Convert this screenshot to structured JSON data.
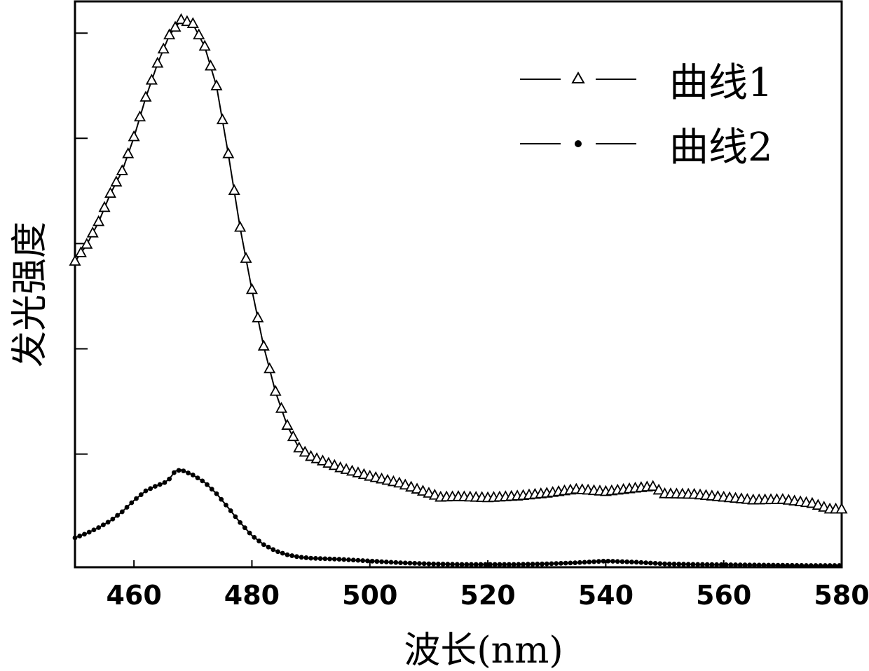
{
  "chart_data": {
    "type": "line",
    "xlabel": "波长(nm)",
    "ylabel": "发光强度",
    "xlim": [
      450,
      580
    ],
    "ylim": [
      0,
      100
    ],
    "x_ticks": [
      "460",
      "480",
      "500",
      "520",
      "540",
      "560",
      "580"
    ],
    "y_ticks_labeled": false,
    "legend_position": "top-right",
    "series": [
      {
        "name": "曲线1",
        "marker": "triangle-open",
        "color": "#000000",
        "x": [
          450,
          452,
          454,
          456,
          458,
          460,
          462,
          464,
          466,
          468,
          470,
          472,
          474,
          476,
          478,
          480,
          482,
          484,
          486,
          488,
          490,
          495,
          500,
          505,
          510,
          512,
          515,
          520,
          525,
          530,
          535,
          540,
          545,
          548,
          550,
          555,
          560,
          565,
          570,
          575,
          578,
          580
        ],
        "y": [
          54,
          57,
          61,
          66,
          70,
          76,
          83,
          89,
          94,
          96.7,
          96,
          92,
          85,
          73,
          60,
          49,
          39,
          31,
          25,
          21,
          19.5,
          17.5,
          16,
          14.8,
          13,
          12.3,
          12.4,
          12.2,
          12.5,
          13,
          13.7,
          13.3,
          13.9,
          14.2,
          12.9,
          12.8,
          12.3,
          11.8,
          11.9,
          11.2,
          10.2,
          10.2
        ]
      },
      {
        "name": "曲线2",
        "marker": "dot",
        "color": "#000000",
        "x": [
          450,
          452,
          454,
          456,
          458,
          460,
          462,
          464,
          465,
          466,
          467,
          468,
          470,
          472,
          474,
          476,
          478,
          480,
          482,
          484,
          486,
          488,
          490,
          495,
          500,
          505,
          510,
          515,
          520,
          525,
          530,
          535,
          540,
          545,
          550,
          555,
          560,
          565,
          570,
          575,
          580
        ],
        "y": [
          5.2,
          6,
          7,
          8.2,
          9.8,
          11.8,
          13.5,
          14.5,
          14.8,
          15.6,
          17,
          17.2,
          16.3,
          15,
          13,
          10.5,
          7.9,
          5.6,
          4,
          2.9,
          2.2,
          1.8,
          1.6,
          1.4,
          1.1,
          0.8,
          0.6,
          0.5,
          0.5,
          0.5,
          0.6,
          0.8,
          1.1,
          0.9,
          0.6,
          0.5,
          0.45,
          0.4,
          0.35,
          0.3,
          0.3
        ]
      }
    ]
  }
}
